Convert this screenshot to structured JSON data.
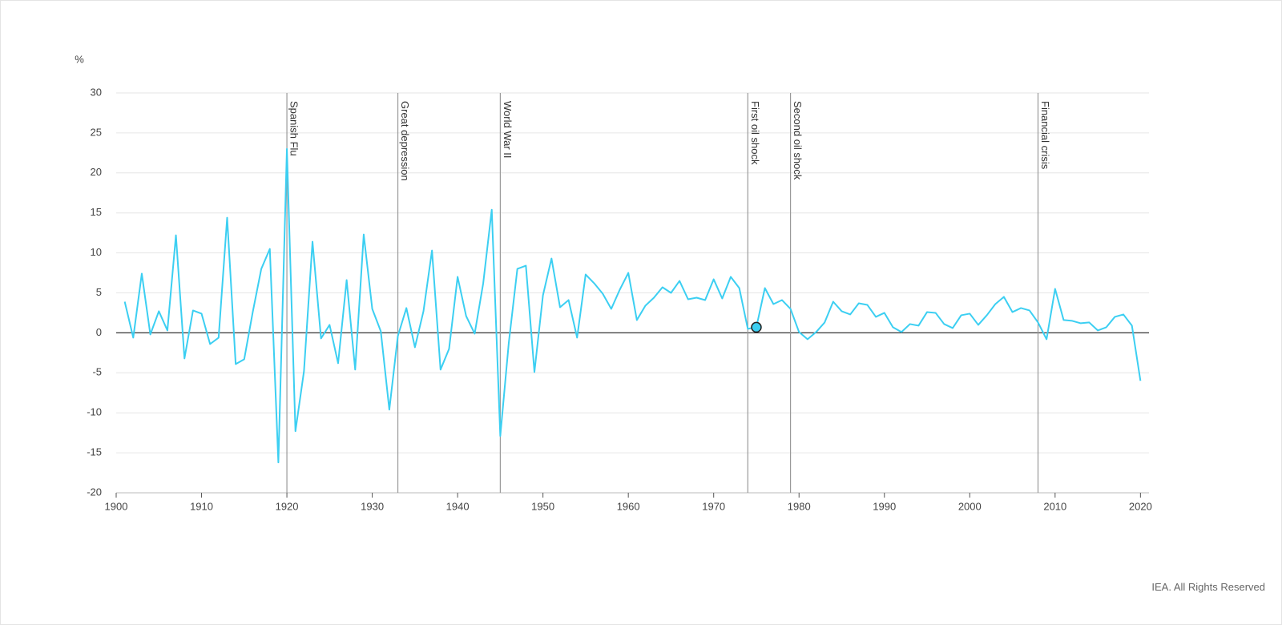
{
  "chart_data": {
    "type": "line",
    "y_label": "%",
    "x": [
      1901,
      1902,
      1903,
      1904,
      1905,
      1906,
      1907,
      1908,
      1909,
      1910,
      1911,
      1912,
      1913,
      1914,
      1915,
      1916,
      1917,
      1918,
      1919,
      1920,
      1921,
      1922,
      1923,
      1924,
      1925,
      1926,
      1927,
      1928,
      1929,
      1930,
      1931,
      1932,
      1933,
      1934,
      1935,
      1936,
      1937,
      1938,
      1939,
      1940,
      1941,
      1942,
      1943,
      1944,
      1945,
      1946,
      1947,
      1948,
      1949,
      1950,
      1951,
      1952,
      1953,
      1954,
      1955,
      1956,
      1957,
      1958,
      1959,
      1960,
      1961,
      1962,
      1963,
      1964,
      1965,
      1966,
      1967,
      1968,
      1969,
      1970,
      1971,
      1972,
      1973,
      1974,
      1975,
      1976,
      1977,
      1978,
      1979,
      1980,
      1981,
      1982,
      1983,
      1984,
      1985,
      1986,
      1987,
      1988,
      1989,
      1990,
      1991,
      1992,
      1993,
      1994,
      1995,
      1996,
      1997,
      1998,
      1999,
      2000,
      2001,
      2002,
      2003,
      2004,
      2005,
      2006,
      2007,
      2008,
      2009,
      2010,
      2011,
      2012,
      2013,
      2014,
      2015,
      2016,
      2017,
      2018,
      2019,
      2020
    ],
    "series": [
      {
        "color": "#3ccff2",
        "values": [
          3.9,
          -0.6,
          7.4,
          -0.2,
          2.7,
          0.3,
          12.2,
          -3.2,
          2.8,
          2.4,
          -1.4,
          -0.6,
          14.4,
          -3.9,
          -3.3,
          2.6,
          8.0,
          10.5,
          -16.2,
          23.0,
          -12.3,
          -4.8,
          11.4,
          -0.7,
          1.0,
          -3.8,
          6.6,
          -4.6,
          12.3,
          3.0,
          0.2,
          -9.6,
          -0.4,
          3.1,
          -1.8,
          2.7,
          10.3,
          -4.6,
          -2.0,
          7.0,
          2.1,
          -0.1,
          6.2,
          15.4,
          -12.9,
          -1.2,
          8.0,
          8.4,
          -4.9,
          4.7,
          9.3,
          3.2,
          4.1,
          -0.6,
          7.3,
          6.2,
          4.9,
          3.0,
          5.4,
          7.5,
          1.6,
          3.4,
          4.4,
          5.7,
          5.0,
          6.5,
          4.2,
          4.4,
          4.1,
          6.7,
          4.3,
          7.0,
          5.6,
          0.5,
          0.7,
          5.6,
          3.6,
          4.1,
          3.0,
          0.1,
          -0.8,
          0.1,
          1.3,
          3.9,
          2.7,
          2.3,
          3.7,
          3.5,
          2.0,
          2.5,
          0.7,
          0.1,
          1.1,
          0.9,
          2.6,
          2.5,
          1.1,
          0.6,
          2.2,
          2.4,
          1.0,
          2.2,
          3.6,
          4.5,
          2.6,
          3.1,
          2.8,
          1.3,
          -0.8,
          5.5,
          1.6,
          1.5,
          1.2,
          1.3,
          0.3,
          0.7,
          2.0,
          2.3,
          0.9,
          -6.0
        ]
      }
    ],
    "events": [
      {
        "x": 1920,
        "label": "Spanish Flu"
      },
      {
        "x": 1933,
        "label": "Great depression"
      },
      {
        "x": 1945,
        "label": "World War II"
      },
      {
        "x": 1974,
        "label": "First oil shock"
      },
      {
        "x": 1979,
        "label": "Second oil shock"
      },
      {
        "x": 2008,
        "label": "Financial crisis"
      }
    ],
    "highlight": 1975,
    "xlim": [
      1900,
      2021
    ],
    "xticks": [
      1900,
      1910,
      1920,
      1930,
      1940,
      1950,
      1960,
      1970,
      1980,
      1990,
      2000,
      2010,
      2020
    ],
    "ylim": [
      -20,
      30
    ],
    "yticks": [
      -20,
      -15,
      -10,
      -5,
      0,
      5,
      10,
      15,
      20,
      25,
      30
    ],
    "grid": true
  },
  "credit": "IEA. All Rights Reserved"
}
